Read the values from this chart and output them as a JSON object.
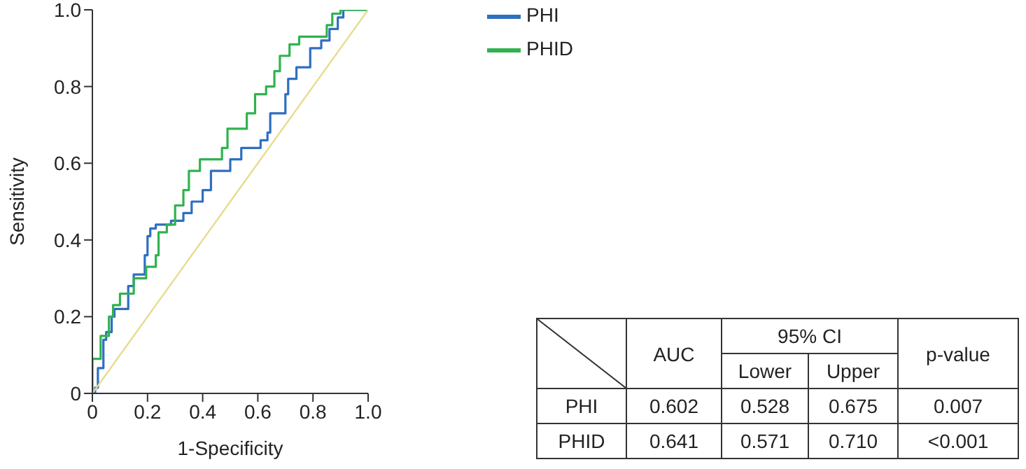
{
  "chart_data": {
    "type": "step",
    "xlabel": "1-Specificity",
    "ylabel": "Sensitivity",
    "xlim": [
      0,
      1
    ],
    "ylim": [
      0,
      1
    ],
    "xticks": [
      0,
      0.2,
      0.4,
      0.6,
      0.8,
      {
        "value": 1,
        "label": "1.0"
      }
    ],
    "yticks": [
      0,
      0.2,
      0.4,
      0.6,
      0.8,
      {
        "value": 1,
        "label": "1.0"
      }
    ],
    "legend": "top right",
    "line_style": "solid",
    "marker": "none",
    "series": [
      {
        "name": "PHI",
        "color": "#2e6fc0",
        "x": [
          0,
          0.01,
          0.02,
          0.04,
          0.05,
          0.07,
          0.08,
          0.13,
          0.13,
          0.15,
          0.18,
          0.19,
          0.2,
          0.21,
          0.23,
          0.285,
          0.33,
          0.36,
          0.39,
          0.4,
          0.43,
          0.49,
          0.5,
          0.54,
          0.59,
          0.61,
          0.635,
          0.645,
          0.675,
          0.7,
          0.71,
          0.74,
          0.78,
          0.79,
          0.83,
          0.86,
          0.89,
          0.91,
          1.0
        ],
        "values": [
          0,
          0.015,
          0.066,
          0.14,
          0.16,
          0.2,
          0.22,
          0.22,
          0.28,
          0.31,
          0.31,
          0.36,
          0.41,
          0.43,
          0.44,
          0.45,
          0.47,
          0.5,
          0.5,
          0.53,
          0.58,
          0.58,
          0.61,
          0.64,
          0.64,
          0.66,
          0.68,
          0.73,
          0.73,
          0.78,
          0.82,
          0.85,
          0.85,
          0.9,
          0.92,
          0.95,
          0.98,
          1.0,
          1.0
        ]
      },
      {
        "name": "PHID",
        "color": "#2fb34f",
        "x": [
          0,
          0,
          0.02,
          0.03,
          0.06,
          0.075,
          0.1,
          0.14,
          0.15,
          0.195,
          0.23,
          0.24,
          0.27,
          0.3,
          0.33,
          0.35,
          0.39,
          0.43,
          0.47,
          0.49,
          0.54,
          0.56,
          0.59,
          0.63,
          0.66,
          0.68,
          0.715,
          0.75,
          0.845,
          0.85,
          0.87,
          0.9,
          1.0
        ],
        "values": [
          0,
          0.09,
          0.09,
          0.15,
          0.2,
          0.23,
          0.26,
          0.26,
          0.3,
          0.33,
          0.36,
          0.42,
          0.44,
          0.49,
          0.53,
          0.58,
          0.61,
          0.61,
          0.64,
          0.69,
          0.69,
          0.73,
          0.78,
          0.8,
          0.84,
          0.88,
          0.91,
          0.93,
          0.93,
          0.96,
          0.99,
          1.0,
          1.0
        ]
      },
      {
        "type": "line",
        "color": "#e6dc8c",
        "x": [
          0,
          1
        ],
        "values": [
          0,
          1
        ]
      }
    ],
    "annotations": [
      "AUC",
      "95% CI",
      "Lower",
      "Upper",
      "p-value",
      "PHI",
      "0.602",
      "0.528",
      "0.675",
      "0.007",
      "PHID",
      "0.641",
      "0.571",
      "0.710",
      "<0.001"
    ]
  }
}
